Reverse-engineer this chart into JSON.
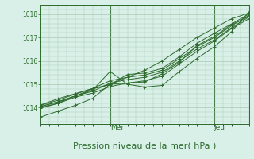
{
  "bg_color": "#d8f0e8",
  "grid_color": "#a8c8b0",
  "line_color": "#2d6a2d",
  "xlabel": "Pression niveau de la mer( hPa )",
  "xlabel_fontsize": 8,
  "yticks": [
    1014,
    1015,
    1016,
    1017,
    1018
  ],
  "ylim": [
    1013.3,
    1018.4
  ],
  "xlim": [
    0,
    96
  ],
  "day_labels": [
    [
      "Mer",
      32
    ],
    [
      "Jeu",
      80
    ]
  ],
  "series": [
    [
      0,
      1014.0,
      8,
      1014.2,
      16,
      1014.5,
      24,
      1014.8,
      32,
      1015.0,
      40,
      1015.3,
      48,
      1015.6,
      56,
      1016.0,
      64,
      1016.5,
      72,
      1017.0,
      80,
      1017.4,
      88,
      1017.8,
      96,
      1018.05
    ],
    [
      0,
      1013.6,
      8,
      1013.85,
      16,
      1014.1,
      24,
      1014.4,
      32,
      1015.0,
      40,
      1015.05,
      48,
      1015.1,
      56,
      1015.45,
      64,
      1015.95,
      72,
      1016.65,
      80,
      1017.05,
      88,
      1017.55,
      96,
      1017.9
    ],
    [
      0,
      1014.05,
      8,
      1014.25,
      16,
      1014.5,
      24,
      1014.75,
      32,
      1015.55,
      40,
      1015.0,
      48,
      1014.88,
      56,
      1014.95,
      64,
      1015.55,
      72,
      1016.1,
      80,
      1016.6,
      88,
      1017.25,
      96,
      1018.1
    ],
    [
      0,
      1014.1,
      8,
      1014.32,
      16,
      1014.58,
      24,
      1014.82,
      32,
      1015.15,
      40,
      1015.3,
      48,
      1015.4,
      56,
      1015.6,
      64,
      1016.1,
      72,
      1016.6,
      80,
      1017.0,
      88,
      1017.5,
      96,
      1017.95
    ],
    [
      0,
      1014.05,
      8,
      1014.25,
      16,
      1014.5,
      24,
      1014.7,
      32,
      1015.05,
      40,
      1015.2,
      48,
      1015.3,
      56,
      1015.52,
      64,
      1016.0,
      72,
      1016.5,
      80,
      1016.9,
      88,
      1017.42,
      96,
      1017.88
    ],
    [
      0,
      1014.12,
      8,
      1014.38,
      16,
      1014.6,
      24,
      1014.82,
      32,
      1014.98,
      40,
      1015.42,
      48,
      1015.48,
      56,
      1015.68,
      64,
      1016.18,
      72,
      1016.75,
      80,
      1017.18,
      88,
      1017.58,
      96,
      1018.0
    ],
    [
      0,
      1013.98,
      8,
      1014.18,
      16,
      1014.45,
      24,
      1014.62,
      32,
      1014.9,
      40,
      1015.05,
      48,
      1015.15,
      56,
      1015.35,
      64,
      1015.88,
      72,
      1016.4,
      80,
      1016.85,
      88,
      1017.38,
      96,
      1017.8
    ]
  ]
}
